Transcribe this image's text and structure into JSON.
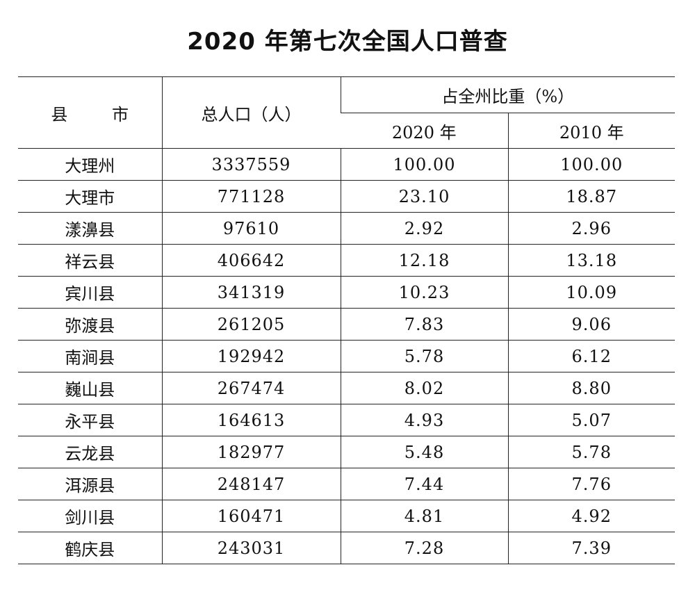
{
  "title": "2020 年第七次全国人口普查",
  "table": {
    "headers": {
      "county": "县 市",
      "population": "总人口（人）",
      "share_group": "占全州比重（%）",
      "year_2020": "2020 年",
      "year_2010": "2010 年"
    },
    "rows": [
      {
        "county": "大理州",
        "population": "3337559",
        "share_2020": "100.00",
        "share_2010": "100.00"
      },
      {
        "county": "大理市",
        "population": "771128",
        "share_2020": "23.10",
        "share_2010": "18.87"
      },
      {
        "county": "漾濞县",
        "population": "97610",
        "share_2020": "2.92",
        "share_2010": "2.96"
      },
      {
        "county": "祥云县",
        "population": "406642",
        "share_2020": "12.18",
        "share_2010": "13.18"
      },
      {
        "county": "宾川县",
        "population": "341319",
        "share_2020": "10.23",
        "share_2010": "10.09"
      },
      {
        "county": "弥渡县",
        "population": "261205",
        "share_2020": "7.83",
        "share_2010": "9.06"
      },
      {
        "county": "南涧县",
        "population": "192942",
        "share_2020": "5.78",
        "share_2010": "6.12"
      },
      {
        "county": "巍山县",
        "population": "267474",
        "share_2020": "8.02",
        "share_2010": "8.80"
      },
      {
        "county": "永平县",
        "population": "164613",
        "share_2020": "4.93",
        "share_2010": "5.07"
      },
      {
        "county": "云龙县",
        "population": "182977",
        "share_2020": "5.48",
        "share_2010": "5.78"
      },
      {
        "county": "洱源县",
        "population": "248147",
        "share_2020": "7.44",
        "share_2010": "7.76"
      },
      {
        "county": "剑川县",
        "population": "160471",
        "share_2020": "4.81",
        "share_2010": "4.92"
      },
      {
        "county": "鹤庆县",
        "population": "243031",
        "share_2020": "7.28",
        "share_2010": "7.39"
      }
    ]
  }
}
